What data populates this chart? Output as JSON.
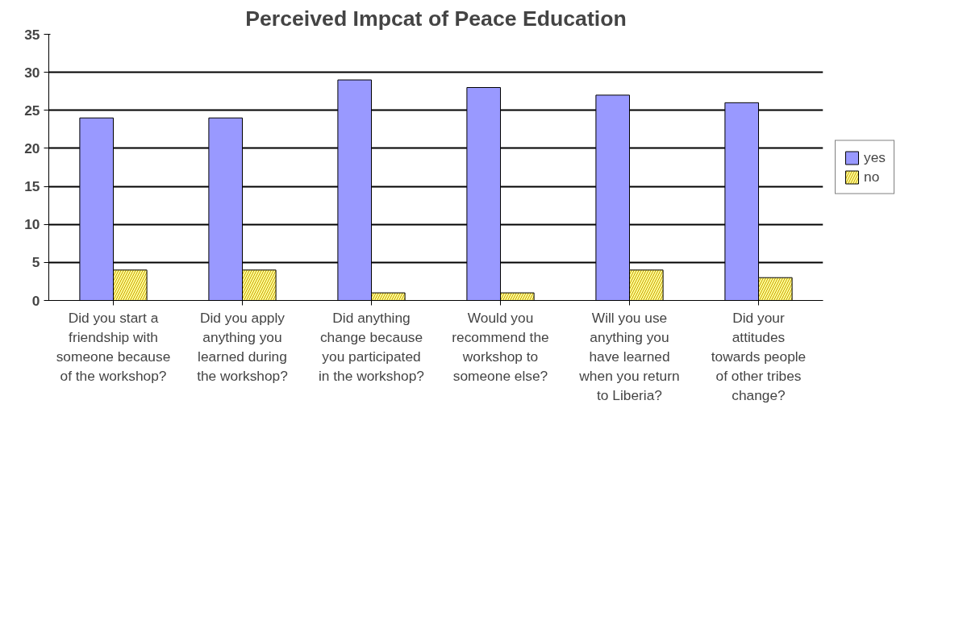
{
  "chart_data": {
    "type": "bar",
    "title": "Perceived Impcat of Peace Education",
    "categories": [
      "Did you start a friendship with someone because of the workshop?",
      "Did you apply anything you learned during the workshop?",
      "Did anything change because you participated in the workshop?",
      "Would you recommend the workshop to someone else?",
      "Will you use anything you have learned when you return to Liberia?",
      "Did your attitudes towards people of other tribes change?"
    ],
    "series": [
      {
        "name": "yes",
        "color": "#9999ff",
        "values": [
          24,
          24,
          29,
          28,
          27,
          26
        ]
      },
      {
        "name": "no",
        "color": "#ffff99",
        "values": [
          4,
          4,
          1,
          1,
          4,
          3
        ]
      }
    ],
    "ylim": [
      0,
      35
    ],
    "yticks": [
      0,
      5,
      10,
      15,
      20,
      25,
      30,
      35
    ],
    "grid": "y",
    "legend": "right"
  }
}
